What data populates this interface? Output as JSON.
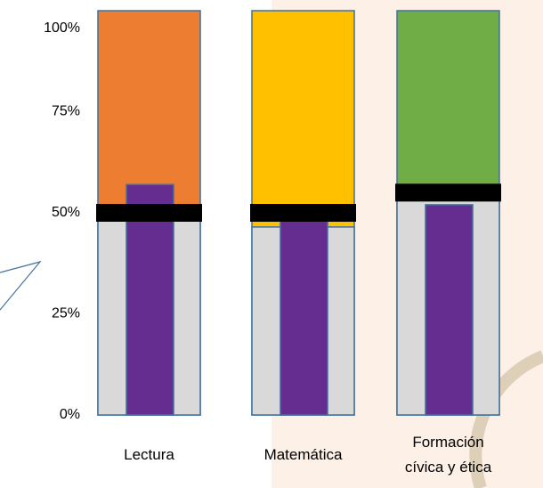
{
  "chart_data": {
    "type": "bullet",
    "categories": [
      "Lectura",
      "Matemática",
      "Formación cívica y ética"
    ],
    "ylim": [
      0,
      100
    ],
    "yticks": [
      {
        "value": 0,
        "label": "0%"
      },
      {
        "value": 25,
        "label": "25%"
      },
      {
        "value": 50,
        "label": "50%"
      },
      {
        "value": 75,
        "label": "75%"
      },
      {
        "value": 100,
        "label": "100%"
      }
    ],
    "series": [
      {
        "role": "range",
        "colors": [
          "#ed7d31",
          "#ffc000",
          "#70ad47"
        ],
        "values": [
          100,
          100,
          100
        ]
      },
      {
        "role": "band",
        "color": "#d9d9d9",
        "values": [
          48,
          46.5,
          53
        ]
      },
      {
        "role": "bar",
        "color": "#662d91",
        "values": [
          57,
          48,
          52
        ]
      },
      {
        "role": "marker",
        "color": "#000000",
        "values": [
          50,
          50,
          55
        ]
      }
    ]
  }
}
